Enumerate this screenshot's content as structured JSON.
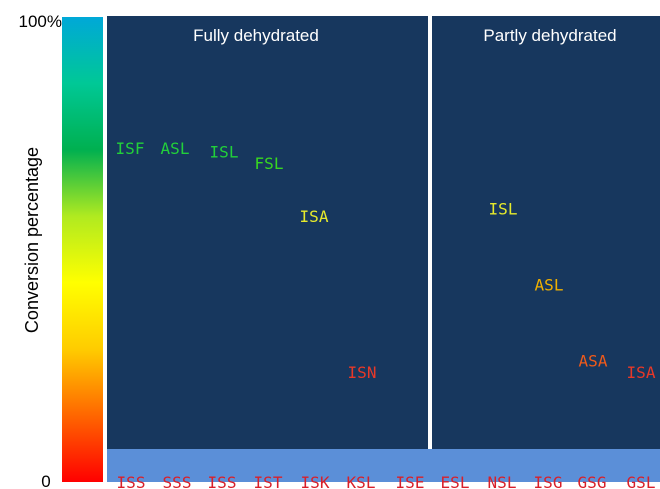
{
  "chart_data": {
    "type": "scatter",
    "ylabel": "Conversion percentage",
    "ylim": [
      0,
      100
    ],
    "y_tick_labels": {
      "top": "100%",
      "bottom": "0"
    },
    "colorbar": {
      "stops": [
        "#ff0000",
        "#ff6600",
        "#ffcc00",
        "#ffff00",
        "#b0ea20",
        "#00b050",
        "#00c896",
        "#00a8d8"
      ]
    },
    "panels": [
      {
        "title": "Fully dehydrated",
        "points": [
          {
            "label": "ISF",
            "value": 74,
            "color": "#22d03a"
          },
          {
            "label": "ASL",
            "value": 74,
            "color": "#22d03a"
          },
          {
            "label": "ISL",
            "value": 73,
            "color": "#22d03a"
          },
          {
            "label": "FSL",
            "value": 70,
            "color": "#38d820"
          },
          {
            "label": "ISA",
            "value": 56,
            "color": "#e6ea2c"
          },
          {
            "label": "ISN",
            "value": 15,
            "color": "#e83828"
          }
        ],
        "zero_labels": [
          "ISS",
          "SSS",
          "ISS",
          "IST",
          "ISK",
          "KSL",
          "ISE"
        ]
      },
      {
        "title": "Partly dehydrated",
        "points": [
          {
            "label": "ISL",
            "value": 58,
            "color": "#e6ea2c"
          },
          {
            "label": "ASL",
            "value": 38,
            "color": "#f0b000"
          },
          {
            "label": "ASA",
            "value": 18,
            "color": "#f05a1a"
          },
          {
            "label": "ISA",
            "value": 15,
            "color": "#e83828"
          }
        ],
        "zero_labels": [
          "ESL",
          "NSL",
          "ISG",
          "GSG",
          "GSL"
        ]
      }
    ],
    "zero_label_color": "#d8202a",
    "colors": {
      "panel_bg": "#17375e",
      "zero_band": "#5b8fd8",
      "divider": "#ffffff",
      "panel_title": "#ffffff",
      "axis_text": "#000000"
    }
  }
}
